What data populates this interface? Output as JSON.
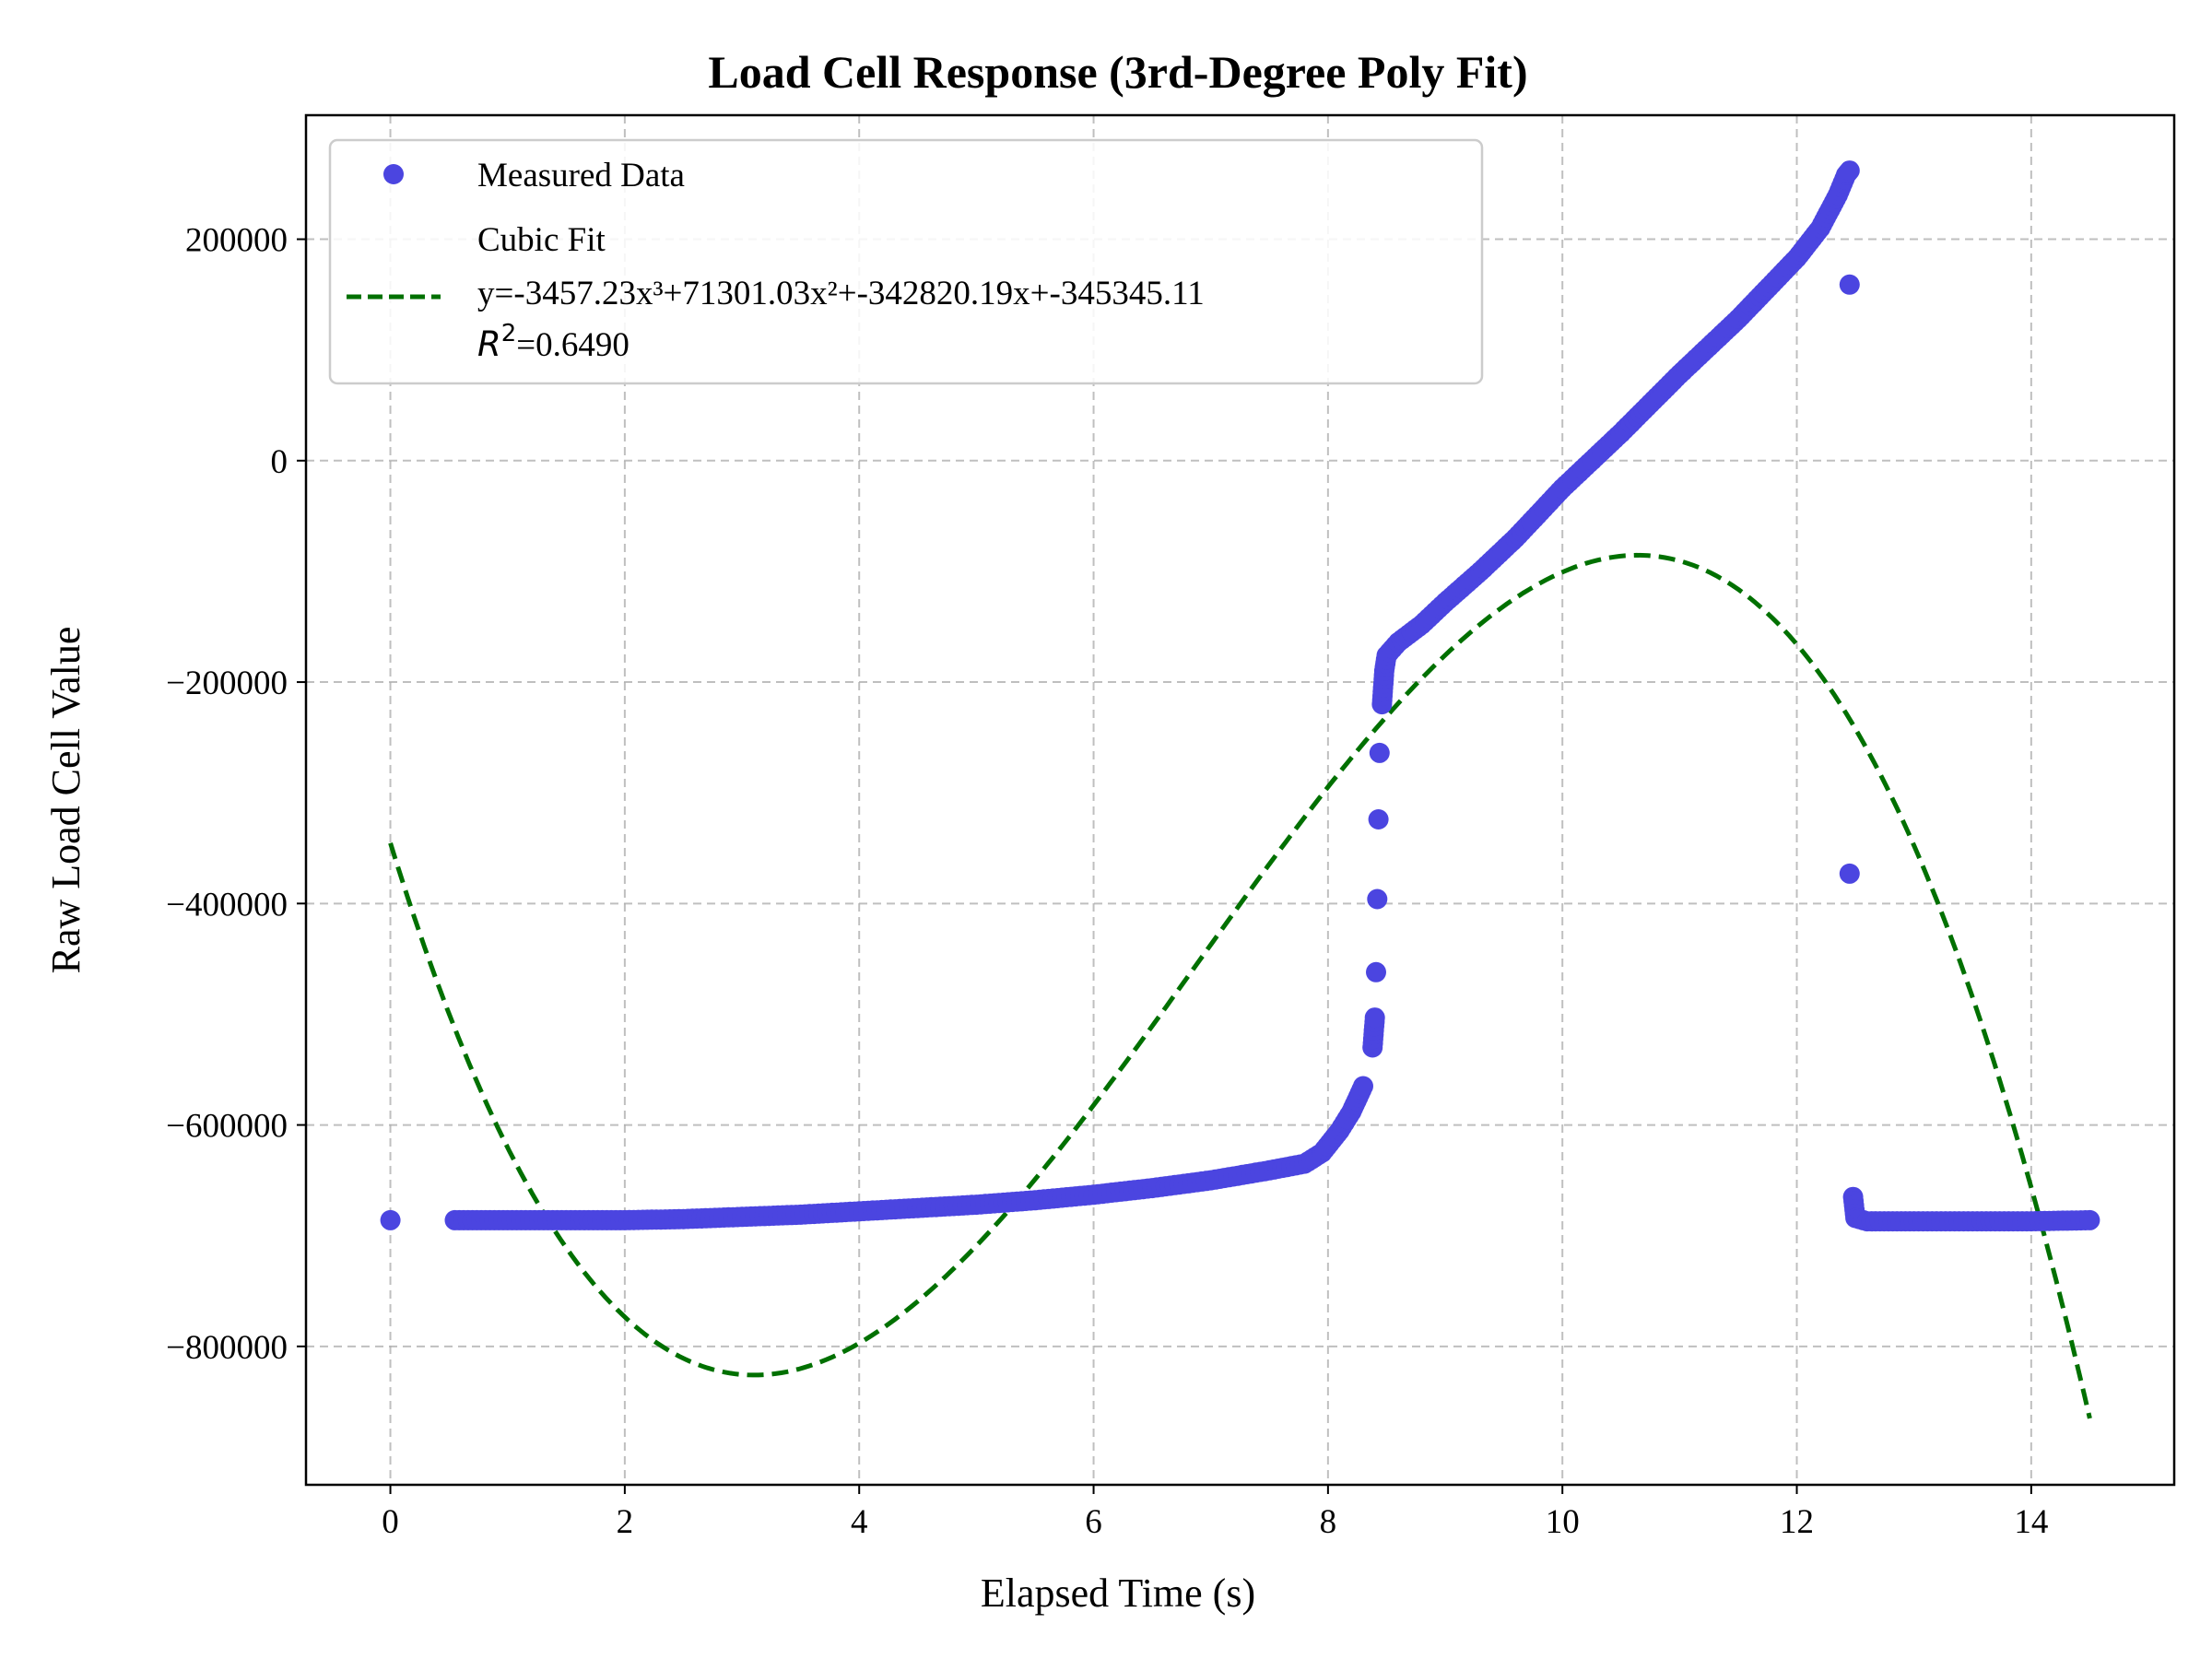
{
  "chart_data": {
    "type": "scatter",
    "title": "Load Cell Response (3rd-Degree Poly Fit)",
    "xlabel": "Elapsed Time (s)",
    "ylabel": "Raw Load Cell Value",
    "xlim": [
      -0.72,
      15.22
    ],
    "ylim": [
      -925000,
      312000
    ],
    "x_ticks": [
      0,
      2,
      4,
      6,
      8,
      10,
      12,
      14
    ],
    "y_ticks": [
      200000,
      0,
      -200000,
      -400000,
      -600000,
      -800000
    ],
    "grid": true,
    "legend_position": "top-left",
    "series": [
      {
        "name": "Measured Data",
        "kind": "scatter",
        "color": "#4b45e0",
        "points": [
          [
            0.0,
            -686000
          ],
          [
            0.55,
            -686000
          ],
          [
            1.0,
            -686000
          ],
          [
            1.5,
            -686000
          ],
          [
            2.0,
            -686000
          ],
          [
            2.5,
            -685000
          ],
          [
            3.0,
            -683000
          ],
          [
            3.5,
            -681000
          ],
          [
            4.0,
            -678000
          ],
          [
            4.5,
            -675000
          ],
          [
            5.0,
            -672000
          ],
          [
            5.5,
            -668000
          ],
          [
            6.0,
            -663000
          ],
          [
            6.5,
            -657000
          ],
          [
            7.0,
            -650000
          ],
          [
            7.5,
            -641000
          ],
          [
            7.8,
            -635000
          ],
          [
            7.95,
            -625000
          ],
          [
            8.1,
            -605000
          ],
          [
            8.2,
            -588000
          ],
          [
            8.3,
            -565000
          ],
          [
            8.38,
            -530000
          ],
          [
            8.4,
            -503000
          ],
          [
            8.41,
            -462000
          ],
          [
            8.42,
            -396000
          ],
          [
            8.43,
            -324000
          ],
          [
            8.44,
            -264000
          ],
          [
            8.46,
            -220000
          ],
          [
            8.48,
            -190000
          ],
          [
            8.5,
            -176000
          ],
          [
            8.6,
            -164000
          ],
          [
            8.8,
            -148000
          ],
          [
            9.0,
            -128000
          ],
          [
            9.3,
            -100000
          ],
          [
            9.6,
            -70000
          ],
          [
            10.0,
            -25000
          ],
          [
            10.2,
            -5000
          ],
          [
            10.5,
            25000
          ],
          [
            11.0,
            78000
          ],
          [
            11.5,
            128000
          ],
          [
            12.0,
            183000
          ],
          [
            12.2,
            210000
          ],
          [
            12.35,
            240000
          ],
          [
            12.42,
            258000
          ],
          [
            12.45,
            262000
          ],
          [
            12.45,
            159000
          ],
          [
            12.45,
            -373000
          ],
          [
            12.48,
            -665000
          ],
          [
            12.5,
            -684000
          ],
          [
            12.6,
            -687000
          ],
          [
            13.0,
            -687000
          ],
          [
            13.5,
            -687000
          ],
          [
            14.0,
            -687000
          ],
          [
            14.5,
            -686000
          ]
        ]
      },
      {
        "name": "Cubic Fit",
        "kind": "line",
        "style": "dashed",
        "color": "#007000",
        "equation": "y=-3457.23x³+71301.03x²+-342820.19x+-345345.11",
        "r2": "=0.6490",
        "coefficients": [
          -3457.23,
          71301.03,
          -342820.19,
          -345345.11
        ],
        "x_range": [
          0.0,
          14.5
        ]
      }
    ]
  }
}
